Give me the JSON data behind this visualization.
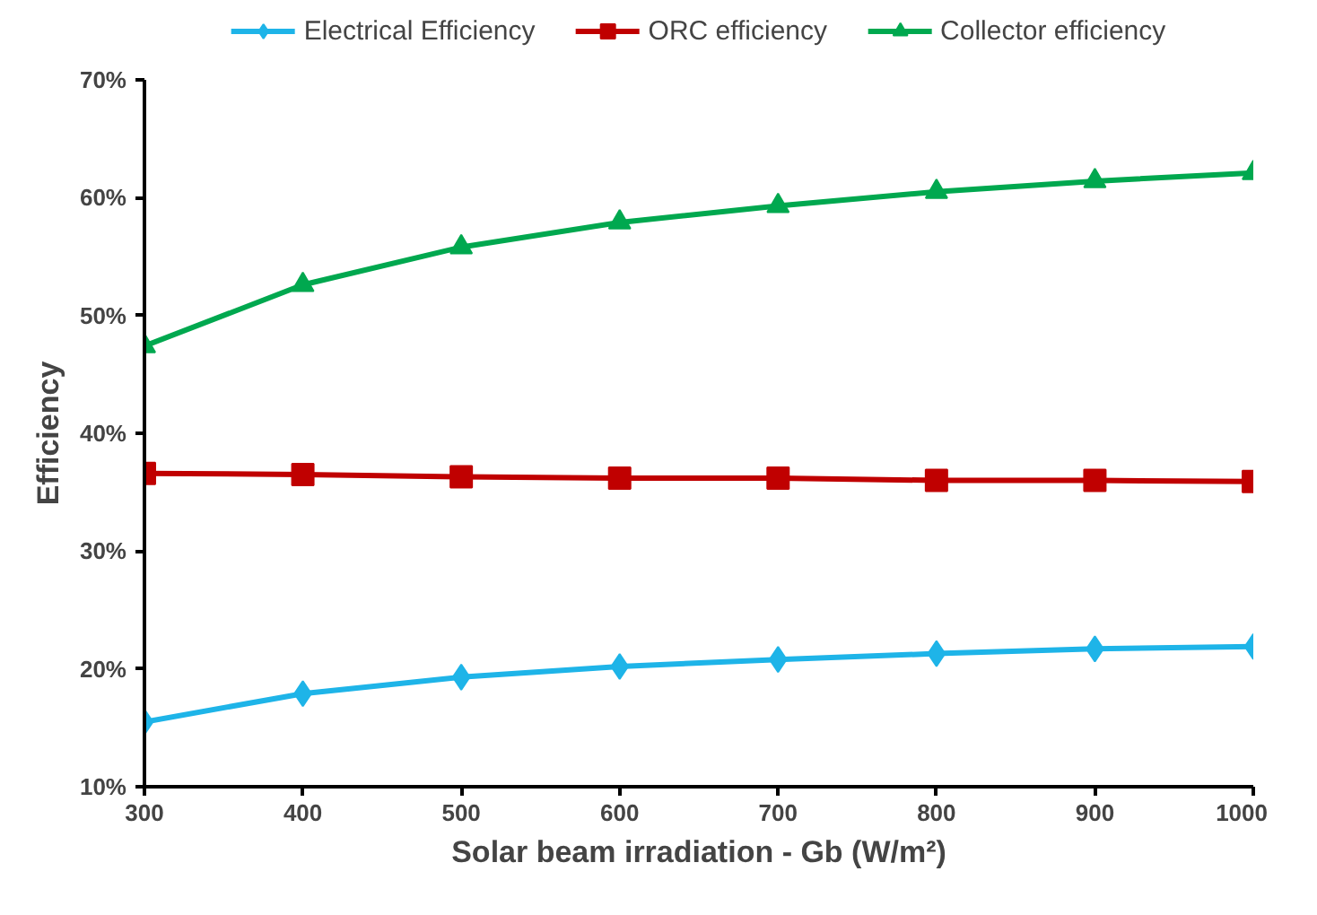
{
  "chart_data": {
    "type": "line",
    "ylabel": "Efficiency",
    "xlabel": "Solar beam irradiation - Gb (W/m²)",
    "x": [
      300,
      400,
      500,
      600,
      700,
      800,
      900,
      1000
    ],
    "series": [
      {
        "name": "Electrical Efficiency",
        "color": "#1eb4e8",
        "marker": "diamond",
        "values": [
          15.5,
          17.9,
          19.3,
          20.2,
          20.8,
          21.3,
          21.7,
          21.9
        ]
      },
      {
        "name": "ORC efficiency",
        "color": "#c00000",
        "marker": "square",
        "values": [
          36.6,
          36.5,
          36.3,
          36.2,
          36.2,
          36.0,
          36.0,
          35.9
        ]
      },
      {
        "name": "Collector efficiency",
        "color": "#00a84f",
        "marker": "triangle",
        "values": [
          47.4,
          52.6,
          55.8,
          57.9,
          59.3,
          60.5,
          61.4,
          62.1
        ]
      }
    ],
    "xlim": [
      300,
      1000
    ],
    "xticks": [
      300,
      400,
      500,
      600,
      700,
      800,
      900,
      1000
    ],
    "ylim": [
      10,
      70
    ],
    "yticks": [
      {
        "value": 10,
        "label": "10%"
      },
      {
        "value": 20,
        "label": "20%"
      },
      {
        "value": 30,
        "label": "30%"
      },
      {
        "value": 40,
        "label": "40%"
      },
      {
        "value": 50,
        "label": "50%"
      },
      {
        "value": 60,
        "label": "60%"
      },
      {
        "value": 70,
        "label": "70%"
      }
    ],
    "grid": false,
    "legend": "top",
    "line_style": "solid"
  }
}
